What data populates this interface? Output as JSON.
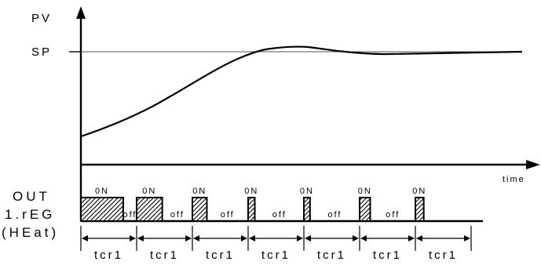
{
  "axis": {
    "y_label": "PV",
    "sp_label": "SP",
    "x_label": "time"
  },
  "output": {
    "label_line1": "OUT",
    "label_line2": "1.rEG",
    "label_line3": "(HEat)",
    "on_label": "0N",
    "off_label": "off",
    "pulses": [
      {
        "on_label": "0N",
        "off_label": "off",
        "duty": 0.76
      },
      {
        "on_label": "0N",
        "off_label": "off",
        "duty": 0.46
      },
      {
        "on_label": "0N",
        "off_label": "off",
        "duty": 0.26
      },
      {
        "on_label": "0N",
        "off_label": "off",
        "duty": 0.12
      },
      {
        "on_label": "0N",
        "off_label": "off",
        "duty": 0.11
      },
      {
        "on_label": "0N",
        "off_label": "off",
        "duty": 0.19
      },
      {
        "on_label": "0N",
        "off_label": "",
        "duty": 0.15
      }
    ]
  },
  "cycles": {
    "label": "tcr1",
    "items": [
      "tcr1",
      "tcr1",
      "tcr1",
      "tcr1",
      "tcr1",
      "tcr1",
      "tcr1"
    ]
  },
  "colors": {
    "line": "#000000",
    "sp_line": "#555555",
    "hatch": "#000000"
  }
}
